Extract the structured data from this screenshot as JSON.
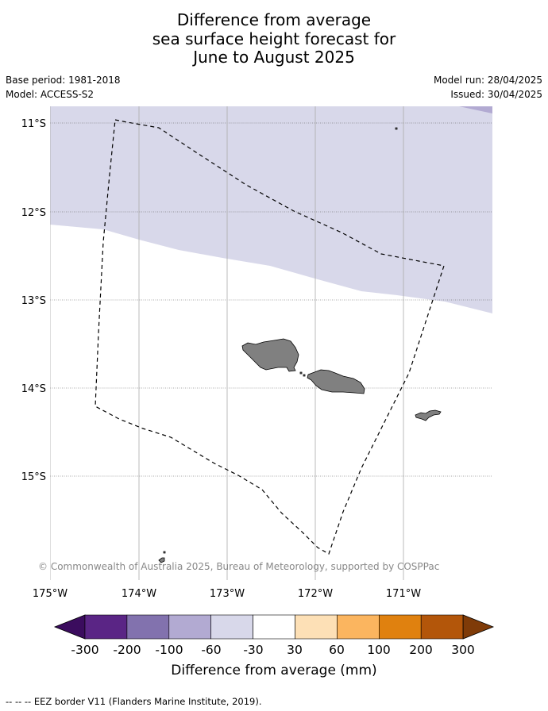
{
  "title": {
    "line1": "Difference from average",
    "line2": "sea surface height forecast for",
    "line3": "June to August 2025"
  },
  "meta": {
    "base_period": "Base period: 1981-2018",
    "model": "Model: ACCESS-S2",
    "model_run": "Model run: 28/04/2025",
    "issued": "Issued: 30/04/2025"
  },
  "map": {
    "longitude_labels": [
      "175°W",
      "174°W",
      "173°W",
      "172°W",
      "171°W"
    ],
    "latitude_labels": [
      "11°S",
      "12°S",
      "13°S",
      "14°S",
      "15°S"
    ],
    "copyright": "© Commonwealth of Australia 2025, Bureau of Meteorology, supported by COSPPac",
    "region_colors": {
      "minus_60_to_minus_30": "#d8d8ea",
      "minus_100_to_minus_60": "#b2aad2",
      "land": "#808080"
    }
  },
  "colorbar": {
    "title": "Difference from average (mm)",
    "tick_labels": [
      "-300",
      "-200",
      "-100",
      "-60",
      "-30",
      "30",
      "60",
      "100",
      "200",
      "300"
    ],
    "colors": [
      "#3b0c5e",
      "#5a2585",
      "#8272ae",
      "#b2aad2",
      "#d8d8ea",
      "#ffffff",
      "#fde0b6",
      "#fbb55f",
      "#e0810f",
      "#b3560a",
      "#7f3b08"
    ]
  },
  "footer": {
    "legend_line": "--  --  -- EEZ border V11 (Flanders Marine Institute, 2019)."
  }
}
